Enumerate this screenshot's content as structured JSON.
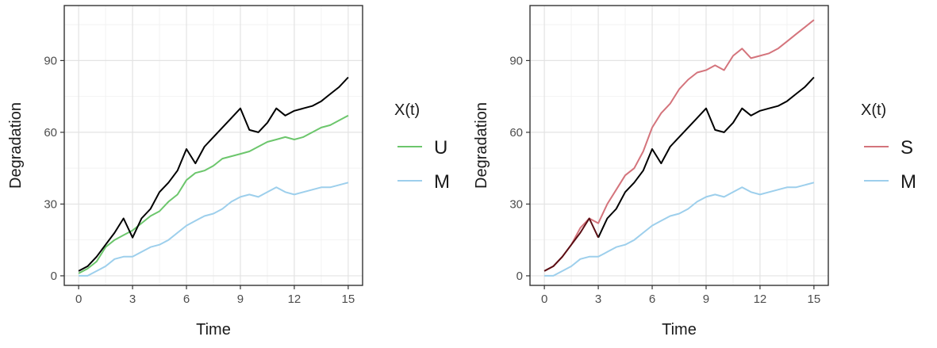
{
  "chart_data": [
    {
      "type": "line",
      "xlabel": "Time",
      "ylabel": "Degradation",
      "xlim": [
        -0.8,
        15.8
      ],
      "ylim": [
        -4,
        113
      ],
      "xticks": [
        0,
        3,
        6,
        9,
        12,
        15
      ],
      "yticks": [
        0,
        30,
        60,
        90
      ],
      "grid": true,
      "legend": {
        "title": "X(t)",
        "position": "right",
        "entries": [
          "U",
          "M"
        ]
      },
      "series": [
        {
          "legend_label": "U",
          "color": "#6cc66c",
          "x": [
            0,
            0.5,
            1,
            1.5,
            2,
            2.5,
            3,
            3.5,
            4,
            4.5,
            5,
            5.5,
            6,
            6.5,
            7,
            7.5,
            8,
            8.5,
            9,
            9.5,
            10,
            10.5,
            11,
            11.5,
            12,
            12.5,
            13,
            13.5,
            14,
            14.5,
            15
          ],
          "y": [
            1,
            3,
            6,
            12,
            15,
            17,
            19,
            22,
            25,
            27,
            31,
            34,
            40,
            43,
            44,
            46,
            49,
            50,
            51,
            52,
            54,
            56,
            57,
            58,
            57,
            58,
            60,
            62,
            63,
            65,
            67
          ]
        },
        {
          "legend_label": "M",
          "color": "#9dcfec",
          "x": [
            0,
            0.5,
            1,
            1.5,
            2,
            2.5,
            3,
            3.5,
            4,
            4.5,
            5,
            5.5,
            6,
            6.5,
            7,
            7.5,
            8,
            8.5,
            9,
            9.5,
            10,
            10.5,
            11,
            11.5,
            12,
            12.5,
            13,
            13.5,
            14,
            14.5,
            15
          ],
          "y": [
            0,
            0,
            2,
            4,
            7,
            8,
            8,
            10,
            12,
            13,
            15,
            18,
            21,
            23,
            25,
            26,
            28,
            31,
            33,
            34,
            33,
            35,
            37,
            35,
            34,
            35,
            36,
            37,
            37,
            38,
            39
          ]
        },
        {
          "color": "#000000",
          "x": [
            0,
            0.5,
            1,
            1.5,
            2,
            2.5,
            3,
            3.5,
            4,
            4.5,
            5,
            5.5,
            6,
            6.5,
            7,
            7.5,
            8,
            8.5,
            9,
            9.5,
            10,
            10.5,
            11,
            11.5,
            12,
            12.5,
            13,
            13.5,
            14,
            14.5,
            15
          ],
          "y": [
            2,
            4,
            8,
            13,
            18,
            24,
            16,
            24,
            28,
            35,
            39,
            44,
            53,
            47,
            54,
            58,
            62,
            66,
            70,
            61,
            60,
            64,
            70,
            67,
            69,
            70,
            71,
            73,
            76,
            79,
            83
          ]
        }
      ]
    },
    {
      "type": "line",
      "xlabel": "Time",
      "ylabel": "Degradation",
      "xlim": [
        -0.8,
        15.8
      ],
      "ylim": [
        -4,
        113
      ],
      "xticks": [
        0,
        3,
        6,
        9,
        12,
        15
      ],
      "yticks": [
        0,
        30,
        60,
        90
      ],
      "grid": true,
      "legend": {
        "title": "X(t)",
        "position": "right",
        "entries": [
          "S",
          "M"
        ]
      },
      "series": [
        {
          "legend_label": "S",
          "color": "#d4747c",
          "x": [
            0,
            0.5,
            1,
            1.5,
            2,
            2.5,
            3,
            3.5,
            4,
            4.5,
            5,
            5.5,
            6,
            6.5,
            7,
            7.5,
            8,
            8.5,
            9,
            9.5,
            10,
            10.5,
            11,
            11.5,
            12,
            12.5,
            13,
            13.5,
            14,
            14.5,
            15
          ],
          "y": [
            2,
            4,
            8,
            13,
            20,
            24,
            22,
            30,
            36,
            42,
            45,
            52,
            62,
            68,
            72,
            78,
            82,
            85,
            86,
            88,
            86,
            92,
            95,
            91,
            92,
            93,
            95,
            98,
            101,
            104,
            107
          ]
        },
        {
          "legend_label": "M",
          "color": "#9dcfec",
          "x": [
            0,
            0.5,
            1,
            1.5,
            2,
            2.5,
            3,
            3.5,
            4,
            4.5,
            5,
            5.5,
            6,
            6.5,
            7,
            7.5,
            8,
            8.5,
            9,
            9.5,
            10,
            10.5,
            11,
            11.5,
            12,
            12.5,
            13,
            13.5,
            14,
            14.5,
            15
          ],
          "y": [
            0,
            0,
            2,
            4,
            7,
            8,
            8,
            10,
            12,
            13,
            15,
            18,
            21,
            23,
            25,
            26,
            28,
            31,
            33,
            34,
            33,
            35,
            37,
            35,
            34,
            35,
            36,
            37,
            37,
            38,
            39
          ]
        },
        {
          "color": "#000000",
          "x": [
            3,
            3.5,
            4,
            4.5,
            5,
            5.5,
            6,
            6.5,
            7,
            7.5,
            8,
            8.5,
            9,
            9.5,
            10,
            10.5,
            11,
            11.5,
            12,
            12.5,
            13,
            13.5,
            14,
            14.5,
            15
          ],
          "y": [
            16,
            24,
            28,
            35,
            39,
            44,
            53,
            47,
            54,
            58,
            62,
            66,
            70,
            61,
            60,
            64,
            70,
            67,
            69,
            70,
            71,
            73,
            76,
            79,
            83
          ]
        },
        {
          "color": "#5a0e14",
          "x": [
            0,
            0.5,
            1,
            1.5,
            2,
            2.5,
            3
          ],
          "y": [
            2,
            4,
            8,
            13,
            18,
            24,
            16
          ]
        }
      ]
    }
  ]
}
